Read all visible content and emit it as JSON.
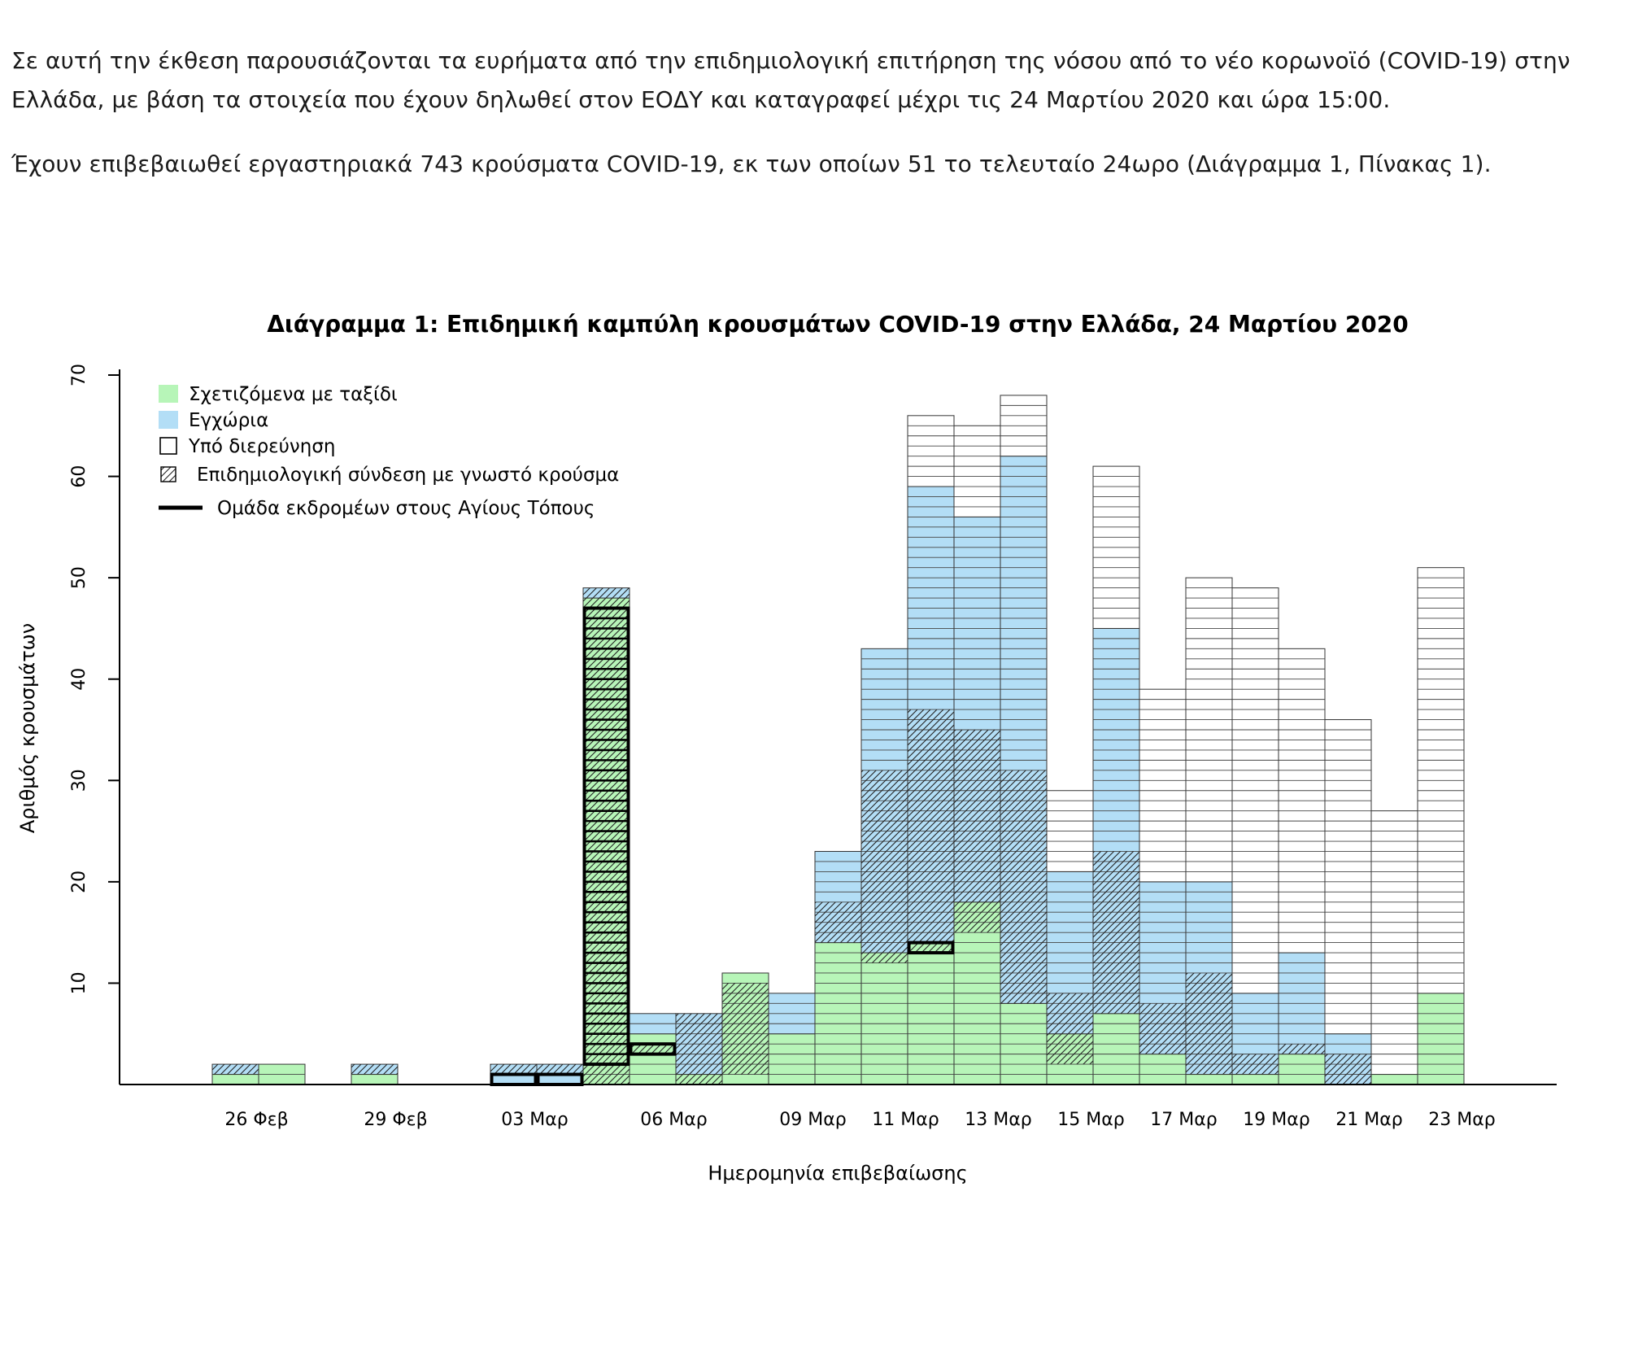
{
  "text": {
    "paragraph_1": "Σε αυτή την έκθεση παρουσιάζονται τα ευρήματα από την επιδημιολογική επιτήρηση της νόσου από το νέο κορωνοϊό (COVID-19) στην Ελλάδα, με βάση τα στοιχεία που έχουν δηλωθεί στον ΕΟΔΥ και καταγραφεί μέχρι τις 24 Μαρτίου 2020 και ώρα 15:00.",
    "paragraph_2": "Έχουν επιβεβαιωθεί εργαστηριακά 743 κρούσματα COVID-19, εκ των οποίων 51 το τελευταίο 24ωρο (Διάγραμμα 1, Πίνακας 1)."
  },
  "chart_data": {
    "type": "bar",
    "stacked": true,
    "title": "Διάγραμμα 1: Επιδημική καμπύλη κρουσμάτων COVID-19 στην Ελλάδα, 24 Μαρτίου 2020",
    "xlabel": "Ημερομηνία επιβεβαίωσης",
    "ylabel": "Αριθμός κρουσμάτων",
    "ylim": [
      0,
      70
    ],
    "yticks": [
      10,
      20,
      30,
      40,
      50,
      60,
      70
    ],
    "categories": [
      "26 Φεβ",
      "27 Φεβ",
      "28 Φεβ",
      "29 Φεβ",
      "01 Μαρ",
      "02 Μαρ",
      "03 Μαρ",
      "04 Μαρ",
      "05 Μαρ",
      "06 Μαρ",
      "07 Μαρ",
      "08 Μαρ",
      "09 Μαρ",
      "10 Μαρ",
      "11 Μαρ",
      "12 Μαρ",
      "13 Μαρ",
      "14 Μαρ",
      "15 Μαρ",
      "16 Μαρ",
      "17 Μαρ",
      "18 Μαρ",
      "19 Μαρ",
      "20 Μαρ",
      "21 Μαρ",
      "22 Μαρ",
      "23 Μαρ"
    ],
    "tick_labels": [
      {
        "index": 0,
        "label": "26 Φεβ"
      },
      {
        "index": 3,
        "label": "29 Φεβ"
      },
      {
        "index": 6,
        "label": "03 Μαρ"
      },
      {
        "index": 9,
        "label": "06 Μαρ"
      },
      {
        "index": 12,
        "label": "09 Μαρ"
      },
      {
        "index": 14,
        "label": "11 Μαρ"
      },
      {
        "index": 16,
        "label": "13 Μαρ"
      },
      {
        "index": 18,
        "label": "15 Μαρ"
      },
      {
        "index": 20,
        "label": "17 Μαρ"
      },
      {
        "index": 22,
        "label": "19 Μαρ"
      },
      {
        "index": 24,
        "label": "21 Μαρ"
      },
      {
        "index": 26,
        "label": "23 Μαρ"
      }
    ],
    "series": [
      {
        "name": "Σχετιζόμενα με ταξίδι",
        "color": "#b7f5b8",
        "values": [
          1,
          2,
          0,
          1,
          0,
          0,
          0,
          0,
          48,
          5,
          1,
          11,
          5,
          14,
          13,
          14,
          18,
          8,
          5,
          7,
          3,
          1,
          1,
          3,
          0,
          1,
          9
        ]
      },
      {
        "name": "Εγχώρια",
        "color": "#b3def6",
        "values": [
          1,
          0,
          0,
          1,
          0,
          0,
          2,
          2,
          1,
          2,
          6,
          0,
          4,
          9,
          30,
          45,
          38,
          54,
          16,
          38,
          17,
          19,
          8,
          10,
          5,
          0,
          0
        ]
      },
      {
        "name": "Υπό διερεύνηση",
        "color": "#ffffff",
        "values": [
          0,
          0,
          0,
          0,
          0,
          0,
          0,
          0,
          0,
          0,
          0,
          0,
          0,
          0,
          0,
          7,
          9,
          6,
          8,
          16,
          19,
          30,
          40,
          30,
          31,
          26,
          42
        ]
      }
    ],
    "hatched_overlay": {
      "name": "Επιδημιολογική σύνδεση με γνωστό κρούσμα",
      "ranges": [
        {
          "index": 0,
          "from": 1,
          "to": 2
        },
        {
          "index": 3,
          "from": 1,
          "to": 2
        },
        {
          "index": 6,
          "from": 1,
          "to": 2
        },
        {
          "index": 7,
          "from": 1,
          "to": 2
        },
        {
          "index": 8,
          "from": 0,
          "to": 49
        },
        {
          "index": 9,
          "from": 3,
          "to": 4
        },
        {
          "index": 10,
          "from": 0,
          "to": 7
        },
        {
          "index": 11,
          "from": 1,
          "to": 10
        },
        {
          "index": 13,
          "from": 14,
          "to": 18
        },
        {
          "index": 14,
          "from": 12,
          "to": 31
        },
        {
          "index": 15,
          "from": 13,
          "to": 37
        },
        {
          "index": 16,
          "from": 15,
          "to": 35
        },
        {
          "index": 17,
          "from": 8,
          "to": 31
        },
        {
          "index": 18,
          "from": 2,
          "to": 9
        },
        {
          "index": 19,
          "from": 7,
          "to": 23
        },
        {
          "index": 20,
          "from": 3,
          "to": 8
        },
        {
          "index": 21,
          "from": 1,
          "to": 11
        },
        {
          "index": 22,
          "from": 1,
          "to": 3
        },
        {
          "index": 23,
          "from": 3,
          "to": 4
        },
        {
          "index": 24,
          "from": 0,
          "to": 3
        }
      ]
    },
    "outlined_group": {
      "name": "Ομάδα εκδρομέων στους Αγίους Τόπους",
      "ranges": [
        {
          "index": 6,
          "from": 0,
          "to": 1
        },
        {
          "index": 7,
          "from": 0,
          "to": 1
        },
        {
          "index": 8,
          "from": 2,
          "to": 47
        },
        {
          "index": 9,
          "from": 3,
          "to": 4
        },
        {
          "index": 15,
          "from": 13,
          "to": 14
        }
      ]
    },
    "legend": {
      "placement": "top-left",
      "entries": [
        {
          "label": "Σχετιζόμενα με ταξίδι",
          "symbol": "green-fill"
        },
        {
          "label": "Εγχώρια",
          "symbol": "blue-fill"
        },
        {
          "label": "Υπό διερεύνηση",
          "symbol": "empty-box"
        },
        {
          "label": "Επιδημιολογική σύνδεση με γνωστό κρούσμα",
          "symbol": "hatched-box"
        },
        {
          "label": "Ομάδα εκδρομέων στους Αγίους Τόπους",
          "symbol": "thick-line"
        }
      ]
    },
    "grid": false,
    "colors": {
      "travel": "#b7f5b8",
      "local": "#b3def6",
      "unknown": "#ffffff",
      "case_line": "#333333",
      "outline": "#000000"
    }
  }
}
